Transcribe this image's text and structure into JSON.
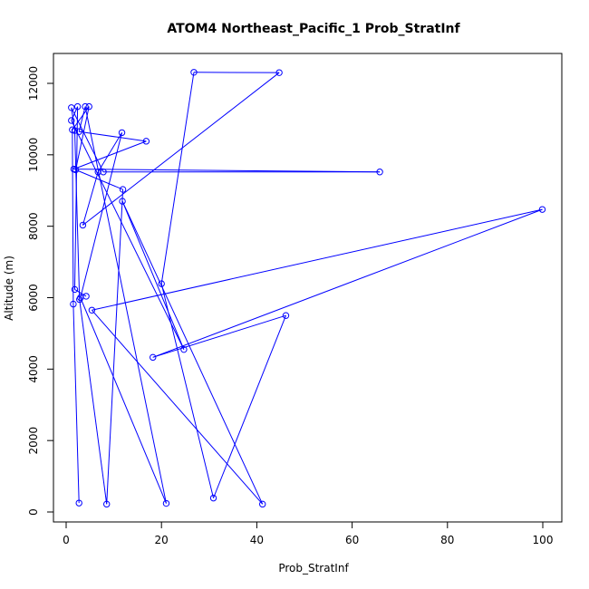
{
  "chart_data": {
    "type": "scatter",
    "title": "ATOM4 Northeast_Pacific_1 Prob_StratInf",
    "xlabel": "Prob_StratInf",
    "ylabel": "Altitude (m)",
    "xlim": [
      0,
      100
    ],
    "ylim": [
      0,
      12300
    ],
    "x_ticks": [
      0,
      20,
      40,
      60,
      80,
      100
    ],
    "y_ticks": [
      0,
      2000,
      4000,
      6000,
      8000,
      10000,
      12000
    ],
    "grid": false,
    "legend": "none",
    "color": "#0000ff",
    "points": [
      {
        "x": 2.7,
        "y": 250
      },
      {
        "x": 1.5,
        "y": 5820
      },
      {
        "x": 1.3,
        "y": 10700
      },
      {
        "x": 4.8,
        "y": 11350
      },
      {
        "x": 2.0,
        "y": 9580
      },
      {
        "x": 11.9,
        "y": 9030
      },
      {
        "x": 8.5,
        "y": 220
      },
      {
        "x": 2.8,
        "y": 5950
      },
      {
        "x": 1.8,
        "y": 10680
      },
      {
        "x": 1.1,
        "y": 11320
      },
      {
        "x": 7.8,
        "y": 9520
      },
      {
        "x": 65.8,
        "y": 9520
      },
      {
        "x": 1.6,
        "y": 9600
      },
      {
        "x": 16.8,
        "y": 10380
      },
      {
        "x": 2.7,
        "y": 10650
      },
      {
        "x": 4.0,
        "y": 11350
      },
      {
        "x": 21.0,
        "y": 240
      },
      {
        "x": 3.0,
        "y": 6000
      },
      {
        "x": 11.7,
        "y": 10620
      },
      {
        "x": 6.7,
        "y": 9520
      },
      {
        "x": 3.5,
        "y": 8030
      },
      {
        "x": 44.7,
        "y": 12300
      },
      {
        "x": 26.8,
        "y": 12310
      },
      {
        "x": 20.0,
        "y": 6390
      },
      {
        "x": 30.9,
        "y": 390
      },
      {
        "x": 46.1,
        "y": 5500
      },
      {
        "x": 18.2,
        "y": 4330
      },
      {
        "x": 99.9,
        "y": 8470
      },
      {
        "x": 5.4,
        "y": 5650
      },
      {
        "x": 41.2,
        "y": 220
      },
      {
        "x": 11.8,
        "y": 8700
      },
      {
        "x": 24.7,
        "y": 4550
      },
      {
        "x": 1.1,
        "y": 10960
      },
      {
        "x": 2.4,
        "y": 11350
      },
      {
        "x": 1.8,
        "y": 6230
      },
      {
        "x": 4.2,
        "y": 6040
      }
    ]
  }
}
